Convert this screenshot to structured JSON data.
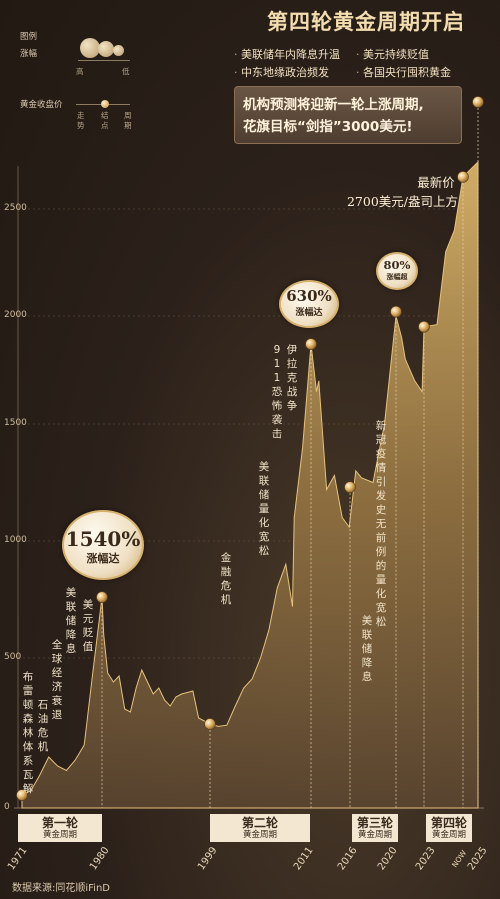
{
  "title": "第四轮黄金周期开启",
  "bullets": [
    "美联储年内降息升温",
    "美元持续贬值",
    "中东地缘政治频发",
    "各国央行囤积黄金"
  ],
  "callout": {
    "line1": "机构预测将迎新一轮上涨周期,",
    "line2": "花旗目标“剑指”3000美元!"
  },
  "legend": {
    "label": "图例",
    "rise_label": "涨幅",
    "high": "高",
    "low": "低",
    "price_label": "黄金收盘价",
    "step1": "走势",
    "step2": "结点",
    "step3": "周期"
  },
  "latest": {
    "line1": "最新价",
    "line2": "2700美元/盎司上方"
  },
  "badges": [
    {
      "value": "1540%",
      "label": "涨幅达"
    },
    {
      "value": "630%",
      "label": "涨幅达"
    },
    {
      "value": "80%",
      "label": "涨幅超"
    }
  ],
  "rounds": [
    {
      "name": "第一轮",
      "sub": "黄金周期"
    },
    {
      "name": "第二轮",
      "sub": "黄金周期"
    },
    {
      "name": "第三轮",
      "sub": "黄金周期"
    },
    {
      "name": "第四轮",
      "sub": "黄金周期"
    }
  ],
  "events": [
    "布雷顿森林体系瓦解",
    "石油危机",
    "全球经济衰退",
    "美联储降息",
    "美元贬值",
    "金融危机",
    "美联储量化宽松",
    "911恐怖袭击",
    "伊拉克战争",
    "新冠疫情引发史无前例的量化宽松",
    "美联储降息"
  ],
  "source": "数据来源:同花顺iFinD",
  "colors": {
    "gold": "#c9a15e",
    "background": "#2b201a",
    "text": "#f3dcae"
  },
  "chart_data": {
    "type": "area",
    "xlabel": "",
    "ylabel": "",
    "ylim": [
      0,
      2700
    ],
    "yticks": [
      "0",
      "500",
      "1000",
      "1500",
      "2000",
      "2500"
    ],
    "xticks": [
      "1971",
      "1980",
      "1999",
      "2011",
      "2016",
      "2020",
      "2023",
      "NOW",
      "2025"
    ],
    "series": [
      {
        "x": [
          1971,
          1972,
          1973,
          1974,
          1975,
          1976,
          1977,
          1978,
          1979,
          1980,
          1980.3,
          1981,
          1982,
          1983,
          1984,
          1985,
          1986,
          1987,
          1988,
          1989,
          1990,
          1991,
          1992,
          1993,
          1994,
          1995,
          1996,
          1997,
          1998,
          1999,
          2000,
          2001,
          2002,
          2003,
          2004,
          2005,
          2006,
          2007,
          2008,
          2008.8,
          2009,
          2010,
          2011,
          2011.7,
          2012,
          2013,
          2014,
          2015,
          2015.9,
          2016.5,
          2017,
          2018,
          2019,
          2020,
          2020.6,
          2021,
          2022,
          2022.8,
          2023,
          2023.6,
          2024,
          2024.4,
          2024.8,
          2025
        ],
        "y": [
          43,
          58,
          110,
          170,
          140,
          125,
          160,
          210,
          460,
          760,
          600,
          450,
          420,
          440,
          330,
          320,
          400,
          460,
          420,
          380,
          400,
          360,
          340,
          370,
          380,
          385,
          390,
          300,
          290,
          280,
          272,
          276,
          340,
          400,
          430,
          500,
          620,
          800,
          900,
          720,
          1100,
          1400,
          1870,
          1650,
          1700,
          1220,
          1280,
          1100,
          1060,
          1300,
          1270,
          1250,
          1500,
          2000,
          1900,
          1800,
          1700,
          1650,
          1950,
          1960,
          2300,
          2400,
          2650,
          2720
        ]
      }
    ],
    "key_points": [
      {
        "x": 1971,
        "y": 43
      },
      {
        "x": 1980,
        "y": 760
      },
      {
        "x": 1999,
        "y": 280
      },
      {
        "x": 2011,
        "y": 1870
      },
      {
        "x": 2016,
        "y": 1230
      },
      {
        "x": 2020,
        "y": 2020
      },
      {
        "x": 2023,
        "y": 1950
      },
      {
        "x": 2024.8,
        "y": 2650
      },
      {
        "x": 2025,
        "y": 3000
      }
    ]
  }
}
